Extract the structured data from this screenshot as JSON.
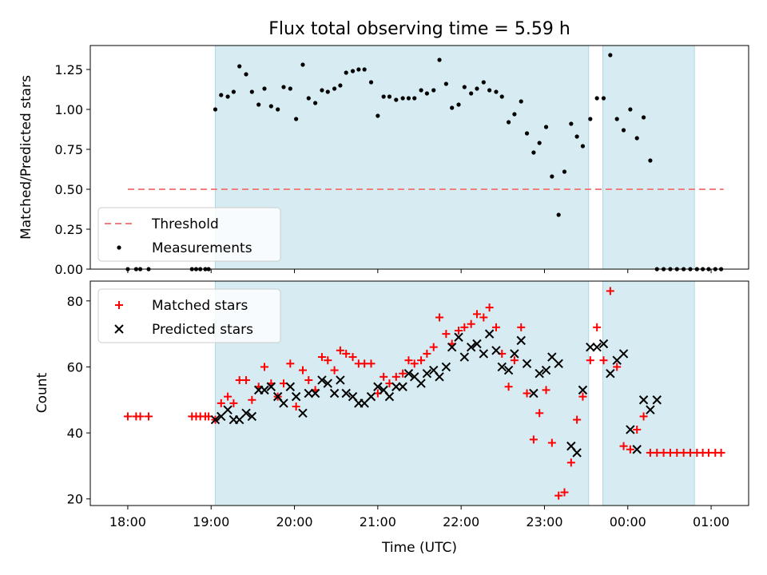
{
  "chart_data": [
    {
      "type": "scatter",
      "title": "Flux total observing time = 5.59 h",
      "ylabel": "Matched/Predicted stars",
      "xlabel": "",
      "x_unit": "hours since 18:00 UTC",
      "xlim": [
        -0.45,
        7.45
      ],
      "ylim": [
        0.0,
        1.4
      ],
      "yticks": [
        0.0,
        0.25,
        0.5,
        0.75,
        1.0,
        1.25
      ],
      "ytick_labels": [
        "0.00",
        "0.25",
        "0.50",
        "0.75",
        "1.00",
        "1.25"
      ],
      "shaded_intervals": [
        [
          1.05,
          5.53
        ],
        [
          5.7,
          6.8
        ]
      ],
      "threshold": {
        "name": "Threshold",
        "value": 0.5,
        "x_range": [
          0.0,
          7.15
        ],
        "color": "#f08080"
      },
      "series": [
        {
          "name": "Measurements",
          "color": "#000000",
          "x": [
            0.0,
            0.1,
            0.15,
            0.25,
            0.77,
            0.82,
            0.87,
            0.93,
            0.97,
            1.05,
            1.12,
            1.2,
            1.27,
            1.34,
            1.42,
            1.49,
            1.57,
            1.64,
            1.72,
            1.8,
            1.87,
            1.95,
            2.02,
            2.1,
            2.17,
            2.25,
            2.33,
            2.4,
            2.48,
            2.55,
            2.62,
            2.7,
            2.77,
            2.84,
            2.92,
            3.0,
            3.07,
            3.14,
            3.22,
            3.3,
            3.37,
            3.44,
            3.52,
            3.59,
            3.67,
            3.74,
            3.82,
            3.89,
            3.97,
            4.04,
            4.12,
            4.19,
            4.27,
            4.34,
            4.42,
            4.49,
            4.57,
            4.64,
            4.72,
            4.79,
            4.87,
            4.94,
            5.02,
            5.09,
            5.17,
            5.24,
            5.32,
            5.39,
            5.46,
            5.55,
            5.63,
            5.71,
            5.79,
            5.87,
            5.95,
            6.03,
            6.11,
            6.19,
            6.27,
            6.35,
            6.43,
            6.51,
            6.59,
            6.67,
            6.75,
            6.83,
            6.9,
            6.97,
            7.05,
            7.12
          ],
          "y": [
            0.0,
            0.0,
            0.0,
            0.0,
            0.0,
            0.0,
            0.0,
            0.0,
            0.0,
            1.0,
            1.09,
            1.08,
            1.11,
            1.27,
            1.22,
            1.11,
            1.03,
            1.13,
            1.02,
            1.0,
            1.14,
            1.13,
            0.94,
            1.28,
            1.07,
            1.04,
            1.12,
            1.11,
            1.13,
            1.15,
            1.23,
            1.24,
            1.25,
            1.25,
            1.17,
            0.96,
            1.08,
            1.08,
            1.06,
            1.07,
            1.07,
            1.07,
            1.12,
            1.1,
            1.12,
            1.31,
            1.16,
            1.01,
            1.03,
            1.14,
            1.1,
            1.13,
            1.17,
            1.12,
            1.11,
            1.08,
            0.92,
            0.97,
            1.05,
            0.85,
            0.73,
            0.79,
            0.89,
            0.58,
            0.34,
            0.61,
            0.91,
            0.83,
            0.77,
            0.94,
            1.07,
            1.07,
            1.34,
            0.94,
            0.87,
            1.0,
            0.82,
            0.95,
            0.68,
            0.0,
            0.0,
            0.0,
            0.0,
            0.0,
            0.0,
            0.0,
            0.0,
            0.0,
            0.0,
            0.0
          ]
        }
      ],
      "legend": {
        "position": "lower-left",
        "entries": [
          "Threshold",
          "Measurements"
        ]
      }
    },
    {
      "type": "scatter",
      "title": "",
      "ylabel": "Count",
      "xlabel": "Time (UTC)",
      "x_unit": "hours since 18:00 UTC",
      "xlim": [
        -0.45,
        7.45
      ],
      "ylim": [
        18,
        86
      ],
      "yticks": [
        20,
        40,
        60,
        80
      ],
      "xticks": [
        0,
        1,
        2,
        3,
        4,
        5,
        6,
        7
      ],
      "xtick_labels": [
        "18:00",
        "19:00",
        "20:00",
        "21:00",
        "22:00",
        "23:00",
        "00:00",
        "01:00"
      ],
      "shaded_intervals": [
        [
          1.05,
          5.53
        ],
        [
          5.7,
          6.8
        ]
      ],
      "series": [
        {
          "name": "Matched stars",
          "marker": "plus",
          "color": "#ff0000",
          "x": [
            0.0,
            0.1,
            0.15,
            0.25,
            0.77,
            0.82,
            0.87,
            0.93,
            0.97,
            1.05,
            1.12,
            1.2,
            1.27,
            1.34,
            1.42,
            1.49,
            1.57,
            1.64,
            1.72,
            1.8,
            1.87,
            1.95,
            2.02,
            2.1,
            2.17,
            2.25,
            2.33,
            2.4,
            2.48,
            2.55,
            2.62,
            2.7,
            2.77,
            2.84,
            2.92,
            3.0,
            3.07,
            3.14,
            3.22,
            3.3,
            3.37,
            3.44,
            3.52,
            3.59,
            3.67,
            3.74,
            3.82,
            3.89,
            3.97,
            4.04,
            4.12,
            4.19,
            4.27,
            4.34,
            4.42,
            4.49,
            4.57,
            4.64,
            4.72,
            4.79,
            4.87,
            4.94,
            5.02,
            5.09,
            5.17,
            5.24,
            5.32,
            5.39,
            5.46,
            5.55,
            5.63,
            5.71,
            5.79,
            5.87,
            5.95,
            6.03,
            6.11,
            6.19,
            6.27,
            6.35,
            6.43,
            6.51,
            6.59,
            6.67,
            6.75,
            6.83,
            6.9,
            6.97,
            7.05,
            7.12
          ],
          "y": [
            45,
            45,
            45,
            45,
            45,
            45,
            45,
            45,
            45,
            44,
            49,
            51,
            49,
            56,
            56,
            50,
            54,
            60,
            55,
            51,
            55,
            61,
            48,
            59,
            56,
            53,
            63,
            62,
            59,
            65,
            64,
            63,
            61,
            61,
            61,
            52,
            57,
            55,
            57,
            58,
            62,
            61,
            62,
            64,
            66,
            75,
            70,
            67,
            71,
            72,
            73,
            76,
            75,
            78,
            72,
            64,
            54,
            62,
            72,
            52,
            38,
            46,
            53,
            37,
            21,
            22,
            31,
            44,
            51,
            62,
            72,
            62,
            83,
            60,
            36,
            35,
            41,
            45,
            34,
            34,
            34,
            34,
            34,
            34,
            34,
            34,
            34,
            34,
            34,
            34
          ]
        },
        {
          "name": "Predicted stars",
          "marker": "x",
          "color": "#000000",
          "x": [
            1.05,
            1.12,
            1.2,
            1.27,
            1.34,
            1.42,
            1.49,
            1.57,
            1.64,
            1.72,
            1.8,
            1.87,
            1.95,
            2.02,
            2.1,
            2.17,
            2.25,
            2.33,
            2.4,
            2.48,
            2.55,
            2.62,
            2.7,
            2.77,
            2.84,
            2.92,
            3.0,
            3.07,
            3.14,
            3.22,
            3.3,
            3.37,
            3.44,
            3.52,
            3.59,
            3.67,
            3.74,
            3.82,
            3.89,
            3.97,
            4.04,
            4.12,
            4.19,
            4.27,
            4.34,
            4.42,
            4.49,
            4.57,
            4.64,
            4.72,
            4.79,
            4.87,
            4.94,
            5.02,
            5.09,
            5.17,
            5.32,
            5.39,
            5.46,
            5.55,
            5.63,
            5.71,
            5.79,
            5.87,
            5.95,
            6.03,
            6.11,
            6.19,
            6.27,
            6.35
          ],
          "y": [
            44,
            45,
            47,
            44,
            44,
            46,
            45,
            53,
            53,
            54,
            51,
            49,
            54,
            51,
            46,
            52,
            52,
            56,
            55,
            52,
            56,
            52,
            51,
            49,
            49,
            51,
            54,
            53,
            51,
            54,
            54,
            58,
            57,
            55,
            58,
            59,
            57,
            60,
            66,
            69,
            63,
            66,
            67,
            64,
            70,
            65,
            60,
            59,
            64,
            68,
            61,
            52,
            58,
            59,
            63,
            61,
            36,
            34,
            53,
            66,
            66,
            67,
            58,
            62,
            64,
            41,
            35,
            50,
            47,
            50
          ]
        }
      ],
      "legend": {
        "position": "upper-left",
        "entries": [
          "Matched stars",
          "Predicted stars"
        ]
      }
    }
  ]
}
